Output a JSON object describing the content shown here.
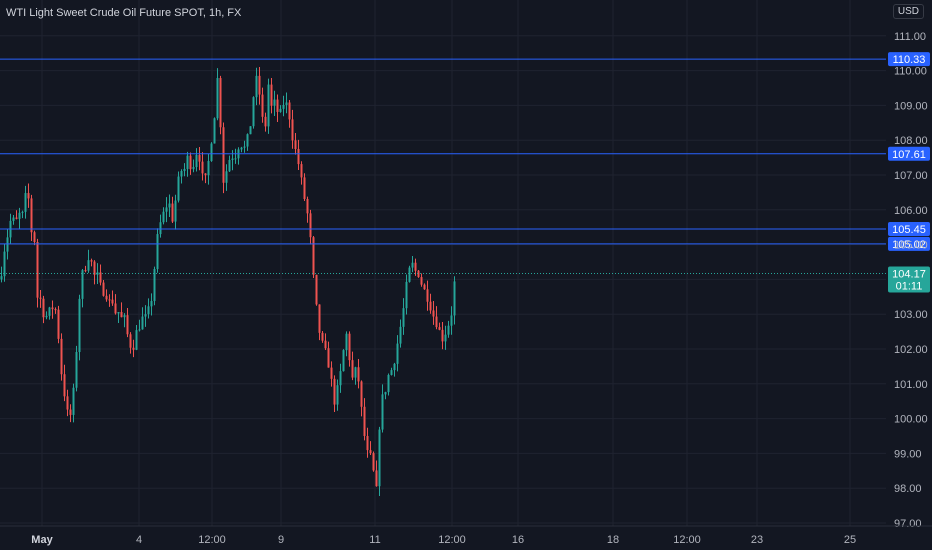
{
  "header": {
    "title": "WTI Light Sweet Crude Oil Future SPOT, 1h, FX",
    "currency": "USD"
  },
  "colors": {
    "background": "#131722",
    "grid": "#1f2330",
    "up": "#26a69a",
    "down": "#ef5350",
    "level_line": "#2962ff"
  },
  "chart_data": {
    "type": "candlestick",
    "x_ticks": [
      "May",
      "4",
      "12:00",
      "9",
      "11",
      "12:00",
      "16",
      "18",
      "12:00",
      "23",
      "25"
    ],
    "y_ticks": [
      "97.00",
      "98.00",
      "99.00",
      "100.00",
      "101.00",
      "102.00",
      "103.00",
      "104.00",
      "105.00",
      "106.00",
      "107.00",
      "108.00",
      "109.00",
      "110.00",
      "111.00"
    ],
    "ylim": [
      97,
      111.5
    ],
    "horizontal_levels": [
      110.33,
      107.61,
      105.45,
      105.02
    ],
    "horizontal_level_labels": [
      "110.33",
      "107.61",
      "105.45",
      "105.02"
    ],
    "last_price": 104.17,
    "last_price_label": "104.17",
    "countdown": "01:11",
    "close_path": [
      [
        0,
        104.0
      ],
      [
        3,
        104.8
      ],
      [
        6,
        105.1
      ],
      [
        9,
        105.6
      ],
      [
        12,
        105.8
      ],
      [
        15,
        105.4
      ],
      [
        18,
        106.2
      ],
      [
        20,
        105.5
      ],
      [
        23,
        106.0
      ],
      [
        26,
        106.5
      ],
      [
        29,
        106.2
      ],
      [
        32,
        105.0
      ],
      [
        35,
        105.2
      ],
      [
        37,
        103.5
      ],
      [
        41,
        103.4
      ],
      [
        44,
        102.9
      ],
      [
        48,
        103.0
      ],
      [
        52,
        103.2
      ],
      [
        56,
        103.1
      ],
      [
        59,
        102.0
      ],
      [
        62,
        101.0
      ],
      [
        65,
        100.6
      ],
      [
        68,
        99.9
      ],
      [
        71,
        100.2
      ],
      [
        74,
        101.0
      ],
      [
        77,
        102.5
      ],
      [
        80,
        104.0
      ],
      [
        83,
        104.2
      ],
      [
        86,
        104.5
      ],
      [
        89,
        104.8
      ],
      [
        92,
        104.3
      ],
      [
        95,
        104.0
      ],
      [
        98,
        104.1
      ],
      [
        101,
        103.6
      ],
      [
        105,
        103.8
      ],
      [
        108,
        103.2
      ],
      [
        111,
        103.6
      ],
      [
        114,
        103.0
      ],
      [
        117,
        103.2
      ],
      [
        120,
        102.8
      ],
      [
        123,
        103.0
      ],
      [
        126,
        102.5
      ],
      [
        129,
        102.2
      ],
      [
        132,
        102.0
      ],
      [
        135,
        102.4
      ],
      [
        138,
        102.6
      ],
      [
        141,
        102.9
      ],
      [
        144,
        102.8
      ],
      [
        147,
        103.0
      ],
      [
        150,
        103.2
      ],
      [
        153,
        104.0
      ],
      [
        156,
        105.0
      ],
      [
        159,
        105.5
      ],
      [
        162,
        105.8
      ],
      [
        165,
        106.0
      ],
      [
        168,
        106.4
      ],
      [
        171,
        105.6
      ],
      [
        174,
        106.1
      ],
      [
        177,
        106.6
      ],
      [
        180,
        107.2
      ],
      [
        183,
        107.0
      ],
      [
        186,
        107.5
      ],
      [
        189,
        107.4
      ],
      [
        192,
        107.2
      ],
      [
        195,
        107.6
      ],
      [
        198,
        107.8
      ],
      [
        201,
        107.0
      ],
      [
        204,
        106.7
      ],
      [
        207,
        107.1
      ],
      [
        210,
        107.9
      ],
      [
        213,
        108.4
      ],
      [
        216,
        109.5
      ],
      [
        218,
        110.0
      ],
      [
        220,
        108.5
      ],
      [
        222,
        106.8
      ],
      [
        225,
        107.0
      ],
      [
        228,
        107.4
      ],
      [
        231,
        107.6
      ],
      [
        234,
        107.5
      ],
      [
        237,
        107.8
      ],
      [
        240,
        108.0
      ],
      [
        243,
        107.7
      ],
      [
        246,
        107.9
      ],
      [
        249,
        108.2
      ],
      [
        252,
        109.0
      ],
      [
        255,
        109.8
      ],
      [
        258,
        109.5
      ],
      [
        261,
        109.0
      ],
      [
        264,
        107.7
      ],
      [
        266,
        109.2
      ],
      [
        269,
        109.8
      ],
      [
        272,
        108.5
      ],
      [
        275,
        109.3
      ],
      [
        278,
        108.6
      ],
      [
        281,
        108.8
      ],
      [
        284,
        109.2
      ],
      [
        287,
        108.9
      ],
      [
        290,
        108.6
      ],
      [
        293,
        107.9
      ],
      [
        296,
        107.6
      ],
      [
        299,
        107.2
      ],
      [
        302,
        106.6
      ],
      [
        305,
        106.2
      ],
      [
        308,
        105.7
      ],
      [
        311,
        104.8
      ],
      [
        314,
        103.6
      ],
      [
        317,
        102.9
      ],
      [
        320,
        102.3
      ],
      [
        323,
        102.0
      ],
      [
        326,
        101.8
      ],
      [
        329,
        101.5
      ],
      [
        332,
        100.8
      ],
      [
        335,
        100.4
      ],
      [
        338,
        101.0
      ],
      [
        341,
        101.4
      ],
      [
        344,
        102.2
      ],
      [
        347,
        102.5
      ],
      [
        350,
        101.4
      ],
      [
        353,
        101.0
      ],
      [
        356,
        101.5
      ],
      [
        359,
        100.9
      ],
      [
        362,
        99.9
      ],
      [
        365,
        99.3
      ],
      [
        368,
        98.8
      ],
      [
        371,
        98.9
      ],
      [
        374,
        98.2
      ],
      [
        376,
        97.9
      ],
      [
        378,
        99.5
      ],
      [
        381,
        100.5
      ],
      [
        384,
        100.7
      ],
      [
        387,
        101.2
      ],
      [
        390,
        101.3
      ],
      [
        393,
        101.6
      ],
      [
        396,
        102.0
      ],
      [
        399,
        102.5
      ],
      [
        402,
        102.9
      ],
      [
        405,
        103.6
      ],
      [
        408,
        104.1
      ],
      [
        411,
        104.5
      ],
      [
        414,
        104.2
      ],
      [
        417,
        104.3
      ],
      [
        420,
        104.0
      ],
      [
        423,
        103.7
      ],
      [
        426,
        103.6
      ],
      [
        429,
        103.4
      ],
      [
        432,
        103.0
      ],
      [
        435,
        102.9
      ],
      [
        438,
        102.6
      ],
      [
        441,
        102.3
      ],
      [
        444,
        102.4
      ],
      [
        447,
        102.7
      ],
      [
        450,
        102.8
      ],
      [
        452,
        103.3
      ],
      [
        455,
        104.17
      ]
    ]
  }
}
